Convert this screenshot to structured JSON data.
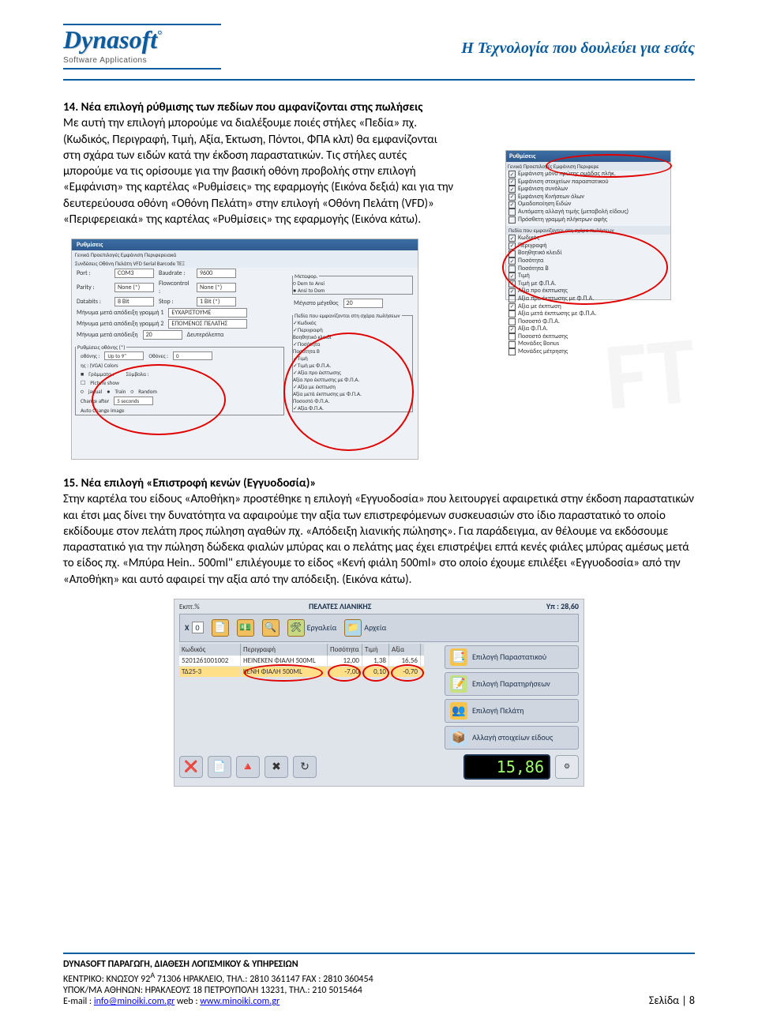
{
  "header": {
    "logo": "Dynasoft",
    "logo_degree": "°",
    "logo_sub": "Software Applications",
    "slogan": "Η Τεχνολογία που δουλεύει για εσάς"
  },
  "section14": {
    "number": "14.",
    "title": "Νέα επιλογή ρύθμισης των πεδίων που αμφανίζονται στης πωλήσεις",
    "body": "Με αυτή την επιλογή μπορούμε να διαλέξουμε ποιές στήλες «Πεδία» πχ. (Κωδικός, Περιγραφή, Τιμή, Αξία, Έκτωση, Πόντοι, ΦΠΑ κλπ) θα εμφανίζονται στη σχάρα των ειδών κατά την έκδοση παραστατικών. Τις στήλες αυτές μπορούμε να τις ορίσουμε για την βασική οθόνη προβολής στην επιλογή «Εμφάνιση» της καρτέλας «Ρυθμίσεις» της εφαρμογής (Εικόνα δεξιά) και για την δευτερεύουσα οθόνη «Οθόνη Πελάτη» στην επιλογή «Οθόνη Πελάτη (VFD)» «Περιφερειακά» της καρτέλας «Ρυθμίσεις» της εφαρμογής (Εικόνα κάτω)."
  },
  "shot_a": {
    "title": "Ρυθμίσεις",
    "tabs": "Γενικά  Προεπιλογές  Εμφάνιση  Περιφερε",
    "checks": [
      {
        "v": true,
        "t": "Εμφάνιση μόνο πρώτης ομάδας πλήκ."
      },
      {
        "v": true,
        "t": "Εμφάνιση στοιχείων παραστατικού"
      },
      {
        "v": true,
        "t": "Εμφάνιση συνόλων"
      },
      {
        "v": true,
        "t": "Εμφάνιση Κινήσεων όλων"
      },
      {
        "v": true,
        "t": "Ομαδοποίηση Ειδών"
      },
      {
        "v": false,
        "t": "Αυτόματη αλλαγή τιμής (μεταβολή είδους)"
      },
      {
        "v": false,
        "t": "Πρόσθετη γραμμή πλήκτρων αφής"
      }
    ],
    "fields_label": "Πεδία που εμφανίζονται στη σχάρα πωλήσεων",
    "fields": [
      {
        "v": true,
        "t": "Κωδικός"
      },
      {
        "v": true,
        "t": "Περιγραφή"
      },
      {
        "v": false,
        "t": "Βοηθητικό κλειδί"
      },
      {
        "v": true,
        "t": "Ποσότητα"
      },
      {
        "v": false,
        "t": "Ποσότητα Β"
      },
      {
        "v": true,
        "t": "Τιμή"
      },
      {
        "v": true,
        "t": "Τιμή με Φ.Π.Α."
      },
      {
        "v": true,
        "t": "Αξία προ έκπτωσης"
      },
      {
        "v": false,
        "t": "Αξία προ έκπτωσης με Φ.Π.Α."
      },
      {
        "v": true,
        "t": "Αξία με έκπτωση"
      },
      {
        "v": false,
        "t": "Αξία μετά έκπτωσης με Φ.Π.Α."
      },
      {
        "v": false,
        "t": "Ποσοστό Φ.Π.Α."
      },
      {
        "v": true,
        "t": "Αξία Φ.Π.Α."
      },
      {
        "v": false,
        "t": "Ποσοστό έκπτωσης"
      },
      {
        "v": false,
        "t": "Μονάδες Bonus"
      },
      {
        "v": false,
        "t": "Μονάδες μέτρησης"
      }
    ]
  },
  "shot_b": {
    "title": "Ρυθμίσεις",
    "tabs": "Γενικά  Προεπιλογές  Εμφάνιση  Περιφερειακά",
    "sub_toggle": "Συνδέσεις   Οθόνη Πελάτη VFD   Serial Barcode   ΤΕΞ",
    "port_label": "Port :",
    "port_value": "COM3",
    "parity_label": "Parity :",
    "parity_value": "None (*)",
    "databits_label": "Databits :",
    "databits_value": "8 Bit",
    "baud_label": "Baudrate :",
    "baud_value": "9600",
    "flow_label": "Flowcontrol :",
    "flow_value": "None (*)",
    "stop_label": "Stop :",
    "stop_value": "1 Bit (*)",
    "transfer_legend": "Μεταφορ.",
    "transfer1": "Dem to Ansi",
    "transfer2": "Ansi to Dem",
    "msg1_label": "Μήνυμα μετά απόδειξη γραμμή 1",
    "msg1_value": "ΕΥΧΑΡΙΣΤΟΥΜΕ",
    "msg2_label": "Μήνυμα μετά απόδειξη γραμμή 2",
    "msg2_value": "ΕΠΟΜΕΝΟΣ ΠΕΛΑΤΗΣ",
    "msg3_label": "Μήνυμα μετά απόδειξη",
    "msg3_value": "20",
    "msg_len_label": "Μέγιστο μέγεθος",
    "msg_len_value": "20",
    "sidepanel_legend": "Ρυθμίσεις οθόνης (*)",
    "demo_label": "οθόνης :",
    "demo_value": "Up to 9''",
    "screens_label": "Οθόνες :",
    "screens_value": "0",
    "colors_row": "ης : (VGA) Colors",
    "grammata": "Γράμματα :",
    "symbola": "Σύμβολα :",
    "picture_show": "Picture show",
    "manual": "janual",
    "train": "Train",
    "random": "Random",
    "change_after": "Change after",
    "seconds": "5  seconds",
    "auto_change": "Auto Change Image",
    "fields_legend": "Πεδία που εμφανίζονται στη σχάρα πωλήσεων",
    "fields": [
      {
        "v": true,
        "t": "Κωδικός"
      },
      {
        "v": true,
        "t": "Περιγραφή"
      },
      {
        "v": false,
        "t": "Βοηθητικό κλειδί"
      },
      {
        "v": true,
        "t": "Ποσότητα"
      },
      {
        "v": false,
        "t": "Ποσότητα Β"
      },
      {
        "v": true,
        "t": "Τιμή"
      },
      {
        "v": true,
        "t": "Τιμή με Φ.Π.Α."
      },
      {
        "v": true,
        "t": "Αξία προ έκπτωσης"
      },
      {
        "v": false,
        "t": "Αξία προ έκπτωσης με Φ.Π.Α."
      },
      {
        "v": true,
        "t": "Αξία με έκπτωση"
      },
      {
        "v": false,
        "t": "Αξία μετά έκπτωσης με Φ.Π.Α."
      },
      {
        "v": false,
        "t": "Ποσοστό Φ.Π.Α."
      },
      {
        "v": true,
        "t": "Αξία Φ.Π.Α."
      }
    ]
  },
  "section15": {
    "number": "15.",
    "title": "Νέα επιλογή «Επιστροφή κενών (Εγγυοδοσία)»",
    "body": "Στην καρτέλα του είδους «Αποθήκη» προστέθηκε η επιλογή «Εγγυοδοσία» που λειτουργεί αφαιρετικά στην έκδοση παραστατικών και έτσι μας  δίνει την δυνατότητα να αφαιρούμε την αξία των επιστρεφόμενων συσκευασιών στο ίδιο παραστατικό το οποίο εκδίδουμε στον πελάτη προς πώληση αγαθών πχ. «Απόδειξη λιανικής πώλησης». Για παράδειγμα, αν θέλουμε να εκδόσουμε παραστατικό για την πώληση δώδεκα φιαλών μπύρας και ο πελάτης μας έχει επιστρέψει επτά κενές φιάλες μπύρας αμέσως μετά το είδος πχ. «Μπύρα Hein.. 500ml\" επιλέγουμε το είδος «Κενή φιάλη 500ml» στο οποίο έχουμε επιλέξει «Εγγυοδοσία» από την «Αποθήκη» και αυτό αφαιρεί την αξία από την απόδειξη. (Εικόνα κάτω)."
  },
  "shot_c": {
    "title_retail": "ΠΕΛΑΤΕΣ ΛΙΑΝΙΚΗΣ",
    "title_right": "Υπ : 28,60",
    "ekpt": "Εκπτ.%",
    "x_label": "X",
    "x_val": "0",
    "tool1": "Εργαλεία",
    "tool2": "Αρχεία",
    "col1": "Κωδικός",
    "col2": "Περιγραφή",
    "col3": "Ποσότητα",
    "col4": "Τιμή",
    "col5": "Αξία",
    "row1": {
      "c1": "5201261001002",
      "c2": "ΗΕΙΝΕΚΕΝ ΦΙΑΛΗ 500ML",
      "c3": "12,00",
      "c4": "1,38",
      "c5": "16,56"
    },
    "row2": {
      "c1": "ΤΔ25-3",
      "c2": "ΚΕΝΗ ΦΙΑΛΗ 500ML",
      "c3": "-7,00",
      "c4": "0,10",
      "c5": "-0,70"
    },
    "side": [
      "Επιλογή Παραστατικού",
      "Επιλογή Παρατηρήσεων",
      "Επιλογή Πελάτη",
      "Αλλαγή στοιχείων είδους"
    ],
    "total": "15,86",
    "btn_icons": [
      "❌",
      "📄",
      "🔺",
      "✖",
      "↻"
    ],
    "colors": {
      "blue": "#0b5c9e",
      "red": "#e00000",
      "panel": "#dfe4ea",
      "hl": "#ffe089",
      "total_fg": "#9fff6b"
    }
  },
  "footer": {
    "l1": "DYNASOFT   ΠΑΡΑΓΩΓΗ, ΔΙΑΘΕΣΗ ΛΟΓΙΣΜΙΚΟΥ & ΥΠΗΡΕΣΙΩΝ",
    "l2a": "ΚΕΝΤΡΙΚΟ: ΚΝΩΣΟΥ 92",
    "l2sup": "Α",
    "l2b": " 71306  ΗΡΑΚΛΕΙΟ, ΤΗΛ.: 2810 361147 FAX : 2810 360454",
    "l3": "ΥΠΟΚ/ΜΑ ΑΘΗΝΩΝ: ΗΡΑΚΛΕΟΥΣ 18 ΠΕΤΡΟΥΠΟΛΗ 13231, ΤΗΛ.: 210 5015464",
    "email_label": "E-mail : ",
    "email": "info@minoiki.com.gr",
    "web_label": "  web : ",
    "web": "www.minoiki.com.gr",
    "page": "Σελίδα | 8"
  }
}
